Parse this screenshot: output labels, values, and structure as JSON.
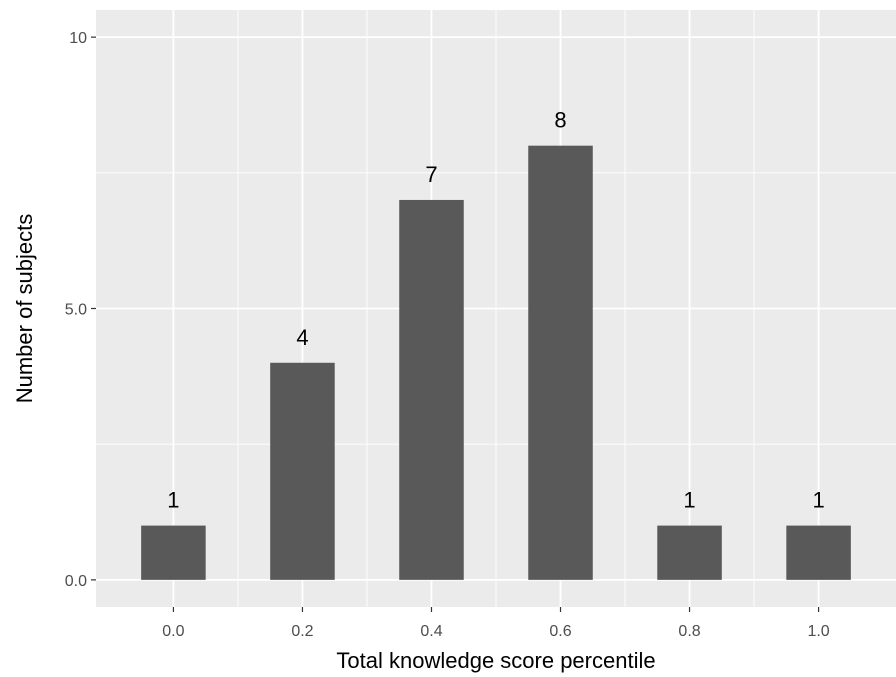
{
  "chart_data": {
    "type": "bar",
    "x_tick_labels": [
      "0.0",
      "0.2",
      "0.4",
      "0.6",
      "0.8",
      "1.0"
    ],
    "values": [
      1,
      4,
      7,
      8,
      1,
      1
    ],
    "data_labels": [
      "1",
      "4",
      "7",
      "8",
      "1",
      "1"
    ],
    "y_ticks": [
      0,
      5,
      10
    ],
    "y_tick_labels": [
      "0.0",
      "5.0",
      "10"
    ],
    "xlabel": "Total knowledge score percentile",
    "ylabel": "Number of subjects",
    "ylim": [
      -0.5,
      10.5
    ],
    "grid": true,
    "colors": {
      "panel_background": "#ebebeb",
      "grid_line": "#ffffff",
      "bar_fill": "#595959",
      "tick_label": "#4d4d4d",
      "tick_mark": "#333333"
    }
  }
}
